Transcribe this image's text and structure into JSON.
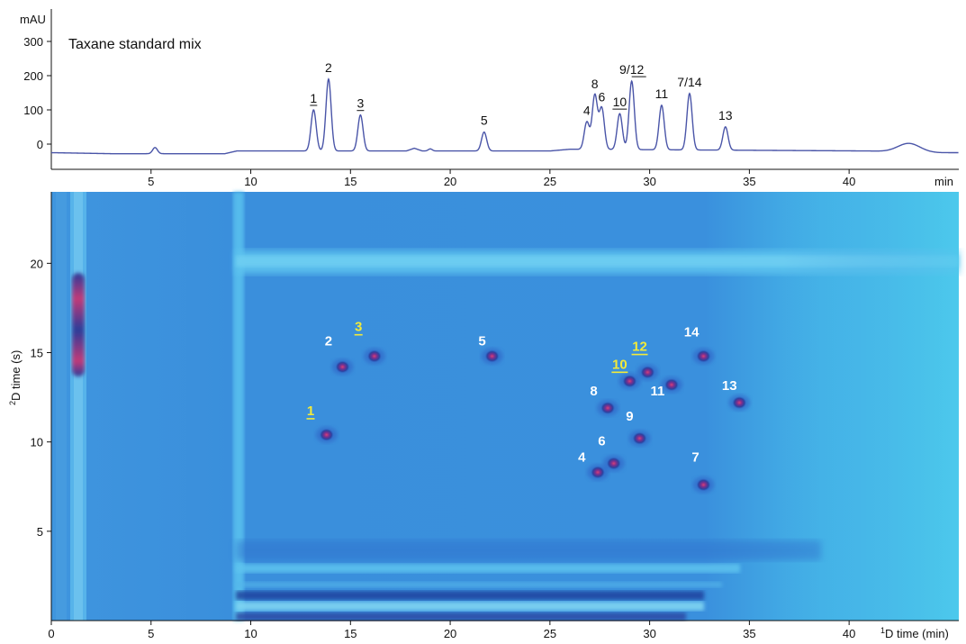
{
  "chart_data": [
    {
      "type": "line",
      "title": "Taxane standard mix",
      "ylabel": "mAU",
      "xunit": "min",
      "xlim": [
        0,
        45.5
      ],
      "ylim": [
        -50,
        350
      ],
      "xticks": [
        5,
        10,
        15,
        20,
        25,
        30,
        35,
        40
      ],
      "yticks": [
        0,
        100,
        200,
        300
      ],
      "color": "#4a55a8",
      "baseline": [
        [
          0,
          -25
        ],
        [
          3,
          -28
        ],
        [
          6,
          -28
        ],
        [
          8.7,
          -28
        ],
        [
          9.3,
          -20
        ],
        [
          12,
          -20
        ],
        [
          17.8,
          -20
        ],
        [
          18.2,
          -12
        ],
        [
          18.6,
          -20
        ],
        [
          21,
          -20
        ],
        [
          25,
          -20
        ],
        [
          26,
          -15
        ],
        [
          41,
          -20
        ],
        [
          44.5,
          -25
        ],
        [
          45.5,
          -25
        ]
      ],
      "bumps": [
        {
          "rt": 5.2,
          "height": 18,
          "width": 0.12
        },
        {
          "rt": 19.0,
          "height": 6,
          "width": 0.1
        },
        {
          "rt": 43.0,
          "height": 25,
          "width": 0.55
        }
      ],
      "peaks": [
        {
          "label": "1",
          "underline": true,
          "rt": 13.15,
          "height": 120
        },
        {
          "label": "2",
          "underline": false,
          "rt": 13.9,
          "height": 210
        },
        {
          "label": "3",
          "underline": true,
          "rt": 15.5,
          "height": 105
        },
        {
          "label": "5",
          "underline": false,
          "rt": 21.7,
          "height": 55
        },
        {
          "label": "4",
          "underline": false,
          "rt": 26.85,
          "height": 80
        },
        {
          "label": "8",
          "underline": false,
          "rt": 27.25,
          "height": 158
        },
        {
          "label": "6",
          "underline": false,
          "rt": 27.6,
          "height": 120
        },
        {
          "label": "10",
          "underline": true,
          "rt": 28.5,
          "height": 105
        },
        {
          "label": "9/12",
          "underline": true,
          "underline_part": "12",
          "rt": 29.1,
          "height": 200
        },
        {
          "label": "11",
          "underline": false,
          "rt": 30.6,
          "height": 130
        },
        {
          "label": "7/14",
          "underline": false,
          "rt": 32.0,
          "height": 165
        },
        {
          "label": "13",
          "underline": false,
          "rt": 33.8,
          "height": 68
        }
      ]
    },
    {
      "type": "heatmap",
      "xlabel": "D time (min)",
      "xlabel_sup": "1",
      "ylabel": "D time (s)",
      "ylabel_sup": "2",
      "xlim": [
        0,
        45.5
      ],
      "ylim": [
        0,
        24
      ],
      "xticks": [
        0,
        5,
        10,
        15,
        20,
        25,
        30,
        35,
        40
      ],
      "yticks": [
        5,
        10,
        15,
        20
      ],
      "background_color": "#3a8fdc",
      "spot_color": "#b0306a",
      "spots": [
        {
          "label": "1",
          "highlight": true,
          "x": 13.8,
          "y": 10.4,
          "lx": 13.0,
          "ly": 11.5
        },
        {
          "label": "2",
          "highlight": false,
          "x": 14.6,
          "y": 14.2,
          "lx": 13.9,
          "ly": 15.4
        },
        {
          "label": "3",
          "highlight": true,
          "x": 16.2,
          "y": 14.8,
          "lx": 15.4,
          "ly": 16.2
        },
        {
          "label": "5",
          "highlight": false,
          "x": 22.1,
          "y": 14.8,
          "lx": 21.6,
          "ly": 15.4
        },
        {
          "label": "4",
          "highlight": false,
          "x": 27.4,
          "y": 8.3,
          "lx": 26.6,
          "ly": 8.9
        },
        {
          "label": "6",
          "highlight": false,
          "x": 28.2,
          "y": 8.8,
          "lx": 27.6,
          "ly": 9.8
        },
        {
          "label": "8",
          "highlight": false,
          "x": 27.9,
          "y": 11.9,
          "lx": 27.2,
          "ly": 12.6
        },
        {
          "label": "9",
          "highlight": false,
          "x": 29.5,
          "y": 10.2,
          "lx": 29.0,
          "ly": 11.2
        },
        {
          "label": "10",
          "highlight": true,
          "x": 29.0,
          "y": 13.4,
          "lx": 28.5,
          "ly": 14.1
        },
        {
          "label": "12",
          "highlight": true,
          "x": 29.9,
          "y": 13.9,
          "lx": 29.5,
          "ly": 15.1
        },
        {
          "label": "11",
          "highlight": false,
          "x": 31.1,
          "y": 13.2,
          "lx": 30.4,
          "ly": 12.6
        },
        {
          "label": "14",
          "highlight": false,
          "x": 32.7,
          "y": 14.8,
          "lx": 32.1,
          "ly": 15.9
        },
        {
          "label": "13",
          "highlight": false,
          "x": 34.5,
          "y": 12.2,
          "lx": 34.0,
          "ly": 12.9
        },
        {
          "label": "7",
          "highlight": false,
          "x": 32.7,
          "y": 7.6,
          "lx": 32.3,
          "ly": 8.9
        }
      ]
    }
  ]
}
